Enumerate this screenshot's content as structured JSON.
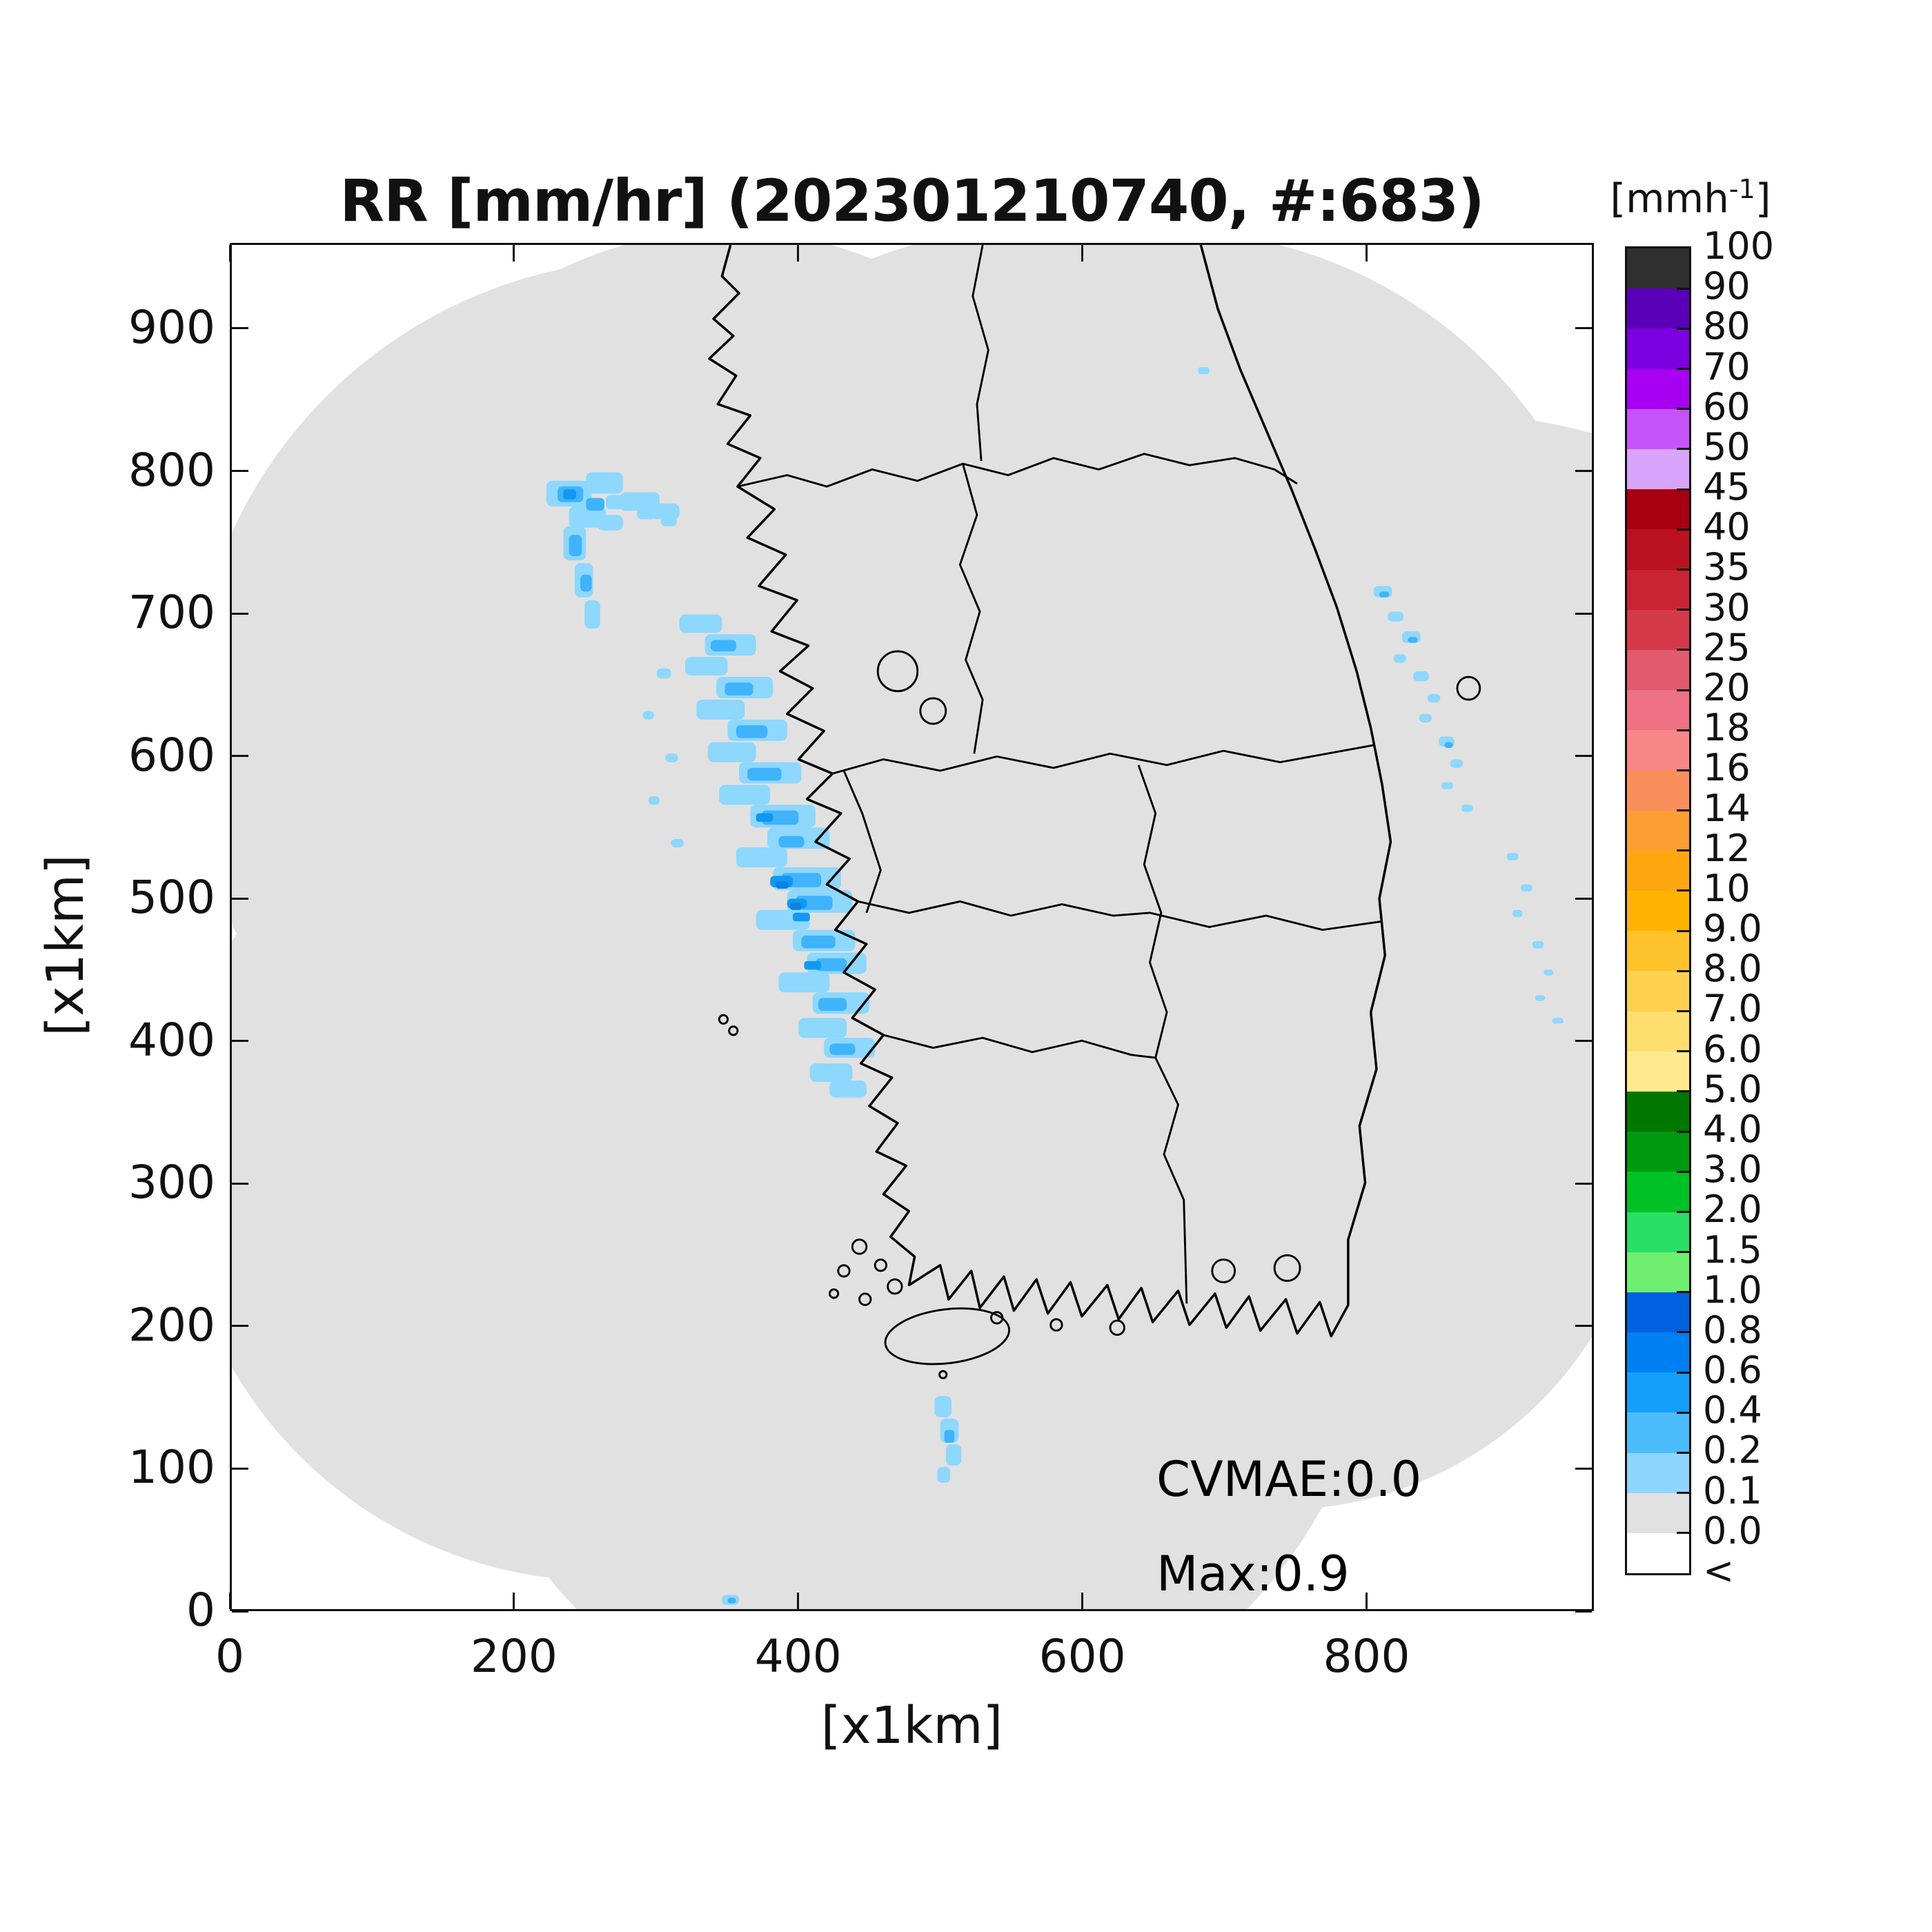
{
  "title": "RR [mm/hr] (202301210740, #:683)",
  "axes": {
    "x": {
      "label": "[x1km]",
      "tick_values": [
        0,
        200,
        400,
        600,
        800
      ],
      "tick_labels": [
        "0",
        "200",
        "400",
        "600",
        "800"
      ],
      "range": [
        0,
        960
      ]
    },
    "y": {
      "label": "[x1km]",
      "tick_values": [
        0,
        100,
        200,
        300,
        400,
        500,
        600,
        700,
        800,
        900
      ],
      "tick_labels": [
        "0",
        "100",
        "200",
        "300",
        "400",
        "500",
        "600",
        "700",
        "800",
        "900"
      ],
      "range": [
        0,
        960
      ]
    }
  },
  "annotations": {
    "cvmae": "CVMAE:0.0",
    "max": "Max:0.9"
  },
  "colorbar": {
    "unit_pre": "[mmh",
    "unit_sup": "-1",
    "unit_post": "]",
    "labels": [
      "100",
      "90",
      "80",
      "70",
      "60",
      "50",
      "45",
      "40",
      "35",
      "30",
      "25",
      "20",
      "18",
      "16",
      "14",
      "12",
      "10",
      "9.0",
      "8.0",
      "7.0",
      "6.0",
      "5.0",
      "4.0",
      "3.0",
      "2.0",
      "1.5",
      "1.0",
      "0.8",
      "0.6",
      "0.4",
      "0.2",
      "0.1",
      "0.0",
      "<"
    ],
    "colors": [
      "#2f2f2f",
      "#5a00b8",
      "#7d00e0",
      "#a800f2",
      "#c653fa",
      "#d9a4fb",
      "#a80010",
      "#ba1220",
      "#c92433",
      "#d53a4b",
      "#e25a6e",
      "#ef7184",
      "#f98787",
      "#fb8f5c",
      "#fd9e33",
      "#fea710",
      "#ffb300",
      "#fec32a",
      "#fdd14e",
      "#fede6e",
      "#ffe98c",
      "#007800",
      "#009a10",
      "#00c226",
      "#2adf66",
      "#70ee70",
      "#0061e0",
      "#0080f0",
      "#14a0fa",
      "#4cbcfc",
      "#8ed6fd",
      "#e1e1e1",
      "#ffffff"
    ]
  },
  "map_colors": {
    "coverage_gray": "#e1e1e1",
    "rain_light": "#8ed7fd",
    "rain_mid": "#3fb3fb",
    "rain_strong": "#0f99f0",
    "rain_dark": "#0b80e0",
    "outline": "#000000"
  },
  "chart_data": {
    "type": "heatmap",
    "title": "RR [mm/hr] (202301210740, #:683)",
    "variable": "radar rain rate",
    "unit": "mm/hr",
    "timestamp": "202301210740",
    "sample_count": 683,
    "xlabel": "[x1km]",
    "ylabel": "[x1km]",
    "xlim": [
      0,
      960
    ],
    "ylim": [
      0,
      960
    ],
    "x_ticks": [
      0,
      200,
      400,
      600,
      800
    ],
    "y_ticks": [
      0,
      100,
      200,
      300,
      400,
      500,
      600,
      700,
      800,
      900
    ],
    "grid": false,
    "legend_position": "right-colorbar",
    "colorbar_unit": "mmh-1",
    "colorbar_levels": [
      0.0,
      0.1,
      0.2,
      0.4,
      0.6,
      0.8,
      1.0,
      1.5,
      2.0,
      3.0,
      4.0,
      5.0,
      6.0,
      7.0,
      8.0,
      9.0,
      10,
      12,
      14,
      16,
      18,
      20,
      25,
      30,
      35,
      40,
      45,
      50,
      60,
      70,
      80,
      90,
      100
    ],
    "stats": {
      "CVMAE": 0.0,
      "Max": 0.9
    },
    "coverage": "union of radar-range circles over the Korean peninsula shaded light gray (0.0-0.1 mm/hr); white outside coverage",
    "precipitation_regions": [
      {
        "name": "northwest-cluster",
        "x_km": [
          215,
          315
        ],
        "y_km": [
          685,
          800
        ],
        "intensity_mmhr": "0.1-0.6"
      },
      {
        "name": "west-coast-band",
        "x_km": [
          290,
          455
        ],
        "y_km": [
          370,
          700
        ],
        "intensity_mmhr": "0.1-0.9 (max of field)"
      },
      {
        "name": "east-sea-specks",
        "x_km": [
          800,
          945
        ],
        "y_km": [
          390,
          725
        ],
        "intensity_mmhr": "0.1-0.4"
      },
      {
        "name": "south-of-jeju-streak",
        "x_km": [
          495,
          520
        ],
        "y_km": [
          80,
          155
        ],
        "intensity_mmhr": "0.1-0.4"
      },
      {
        "name": "bottom-edge-speck",
        "x_km": [
          345,
          360
        ],
        "y_km": [
          0,
          10
        ],
        "intensity_mmhr": "0.1-0.2"
      },
      {
        "name": "top-right-speck",
        "x_km": [
          680,
          695
        ],
        "y_km": [
          865,
          875
        ],
        "intensity_mmhr": "0.1-0.2"
      }
    ]
  }
}
